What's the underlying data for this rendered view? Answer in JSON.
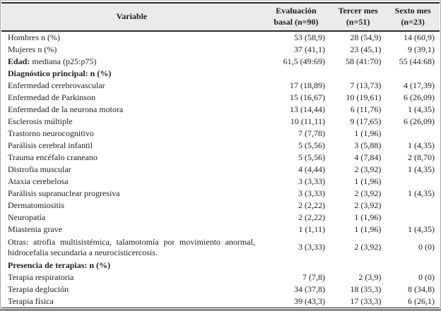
{
  "table": {
    "header": {
      "variable": "Variable",
      "basal_line1": "Evaluación",
      "basal_line2": "basal (n=90)",
      "tercer_line1": "Tercer mes",
      "tercer_line2": "(n=51)",
      "sexto_line1": "Sexto mes",
      "sexto_line2": "(n=23)"
    },
    "style": {
      "header_bg": "#ebebeb",
      "rule_color": "#2a2a2a",
      "text_color": "#1c1c1c"
    },
    "rows": [
      {
        "label": "Hombres n (%)",
        "values": [
          "53 (58,9)",
          "28 (54,9)",
          "14 (60,9)"
        ]
      },
      {
        "label": "Mujeres n (%)",
        "values": [
          "37 (41,1)",
          "23 (45,1)",
          "9 (39,1)"
        ]
      },
      {
        "bold_prefix": "Edad:",
        "label": " mediana (p25:p75)",
        "values": [
          "61,5 (49:69)",
          "58 (41:70)",
          "55 (44:68)"
        ]
      },
      {
        "label": "Diagnóstico principal: n (%)",
        "section": true,
        "values": [
          "",
          "",
          ""
        ]
      },
      {
        "label": "Enfermedad cerebrovascular",
        "values": [
          "17 (18,89)",
          "7 (13,73)",
          "4 (17,39)"
        ]
      },
      {
        "label": "Enfermedad de Parkinson",
        "values": [
          "15 (16,67)",
          "10 (19,61)",
          "6 (26,09)"
        ]
      },
      {
        "label": "Enfermedad de la neurona motora",
        "values": [
          "13 (14,44)",
          "6 (11,76)",
          "1 (4,35)"
        ]
      },
      {
        "label": "Esclerosis múltiple",
        "values": [
          "10 (11,11)",
          "9 (17,65)",
          "6 (26,09)"
        ]
      },
      {
        "label": "Trastorno neurocognitivo",
        "values": [
          "7 (7,78)",
          "1 (1,96)",
          ""
        ]
      },
      {
        "label": "Parálisis cerebral infantil",
        "values": [
          "5 (5,56)",
          "3 (5,88)",
          "1 (4,35)"
        ]
      },
      {
        "label": "Trauma encéfalo craneano",
        "values": [
          "5 (5,56)",
          "4 (7,84)",
          "2 (8,70)"
        ]
      },
      {
        "label": "Distrofia muscular",
        "values": [
          "4 (4,44)",
          "2 (3,92)",
          "1 (4,35)"
        ]
      },
      {
        "label": "Ataxia cerebelosa",
        "values": [
          "3 (3,33)",
          "1 (1,96)",
          ""
        ]
      },
      {
        "label": "Parálisis supranuclear progresiva",
        "values": [
          "3 (3,33)",
          "2 (3,92)",
          "1 (4,35)"
        ]
      },
      {
        "label": "Dermatomiositis",
        "values": [
          "2 (2,22)",
          "2 (3,92)",
          ""
        ]
      },
      {
        "label": "Neuropatía",
        "values": [
          "2 (2,22)",
          "1 (1,96)",
          ""
        ]
      },
      {
        "label": "Miastenia grave",
        "values": [
          "1 (1,11)",
          "1 (1,96)",
          "1 (4,35)"
        ]
      },
      {
        "label": "Otras: atrofia multisistémica, talamotomía por movimiento anormal, hidrocefalia secundaria a neurocisticercosis.",
        "wrap": true,
        "values": [
          "3 (3,33)",
          "2 (3,92)",
          "0 (0)"
        ]
      },
      {
        "label": "Presencia de terapias: n (%)",
        "section": true,
        "values": [
          "",
          "",
          ""
        ]
      },
      {
        "label": "Terapia respiratoria",
        "values": [
          "7 (7,8)",
          "2 (3,9)",
          "0 (0)"
        ]
      },
      {
        "label": "Terapia deglución",
        "values": [
          "34 (37,8)",
          "18 (35,3)",
          "8 (34,8)"
        ]
      },
      {
        "label": "Terapia física",
        "values": [
          "39 (43,3)",
          "17 (33,3)",
          "6 (26,1)"
        ]
      }
    ]
  }
}
